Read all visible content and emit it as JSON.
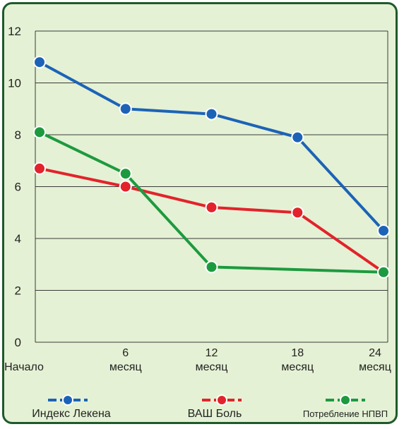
{
  "chart_data": {
    "type": "line",
    "categories": [
      "Начало",
      "6 месяц",
      "12 месяц",
      "18 месяц",
      "24 месяц"
    ],
    "x_tick_lines": [
      [
        "Начало"
      ],
      [
        "6",
        "месяц"
      ],
      [
        "12",
        "месяц"
      ],
      [
        "18",
        "месяц"
      ],
      [
        "24",
        "месяц"
      ]
    ],
    "y_ticks": [
      0,
      2,
      4,
      6,
      8,
      10,
      12
    ],
    "ylim": [
      0,
      12
    ],
    "grid": true,
    "legend_position": "bottom",
    "series": [
      {
        "name": "Индекс Лекена",
        "color": "#1c63b7",
        "values": [
          10.8,
          9.0,
          8.8,
          7.9,
          4.3
        ]
      },
      {
        "name": "ВАШ Боль",
        "color": "#e2232b",
        "values": [
          6.7,
          6.0,
          5.2,
          5.0,
          2.7
        ]
      },
      {
        "name": "Потребление НПВП",
        "color": "#1d9a3f",
        "values": [
          8.1,
          6.5,
          2.9,
          null,
          2.7
        ]
      }
    ],
    "background_color": "#e4f1d4",
    "border_color": "#1f5a2a"
  }
}
